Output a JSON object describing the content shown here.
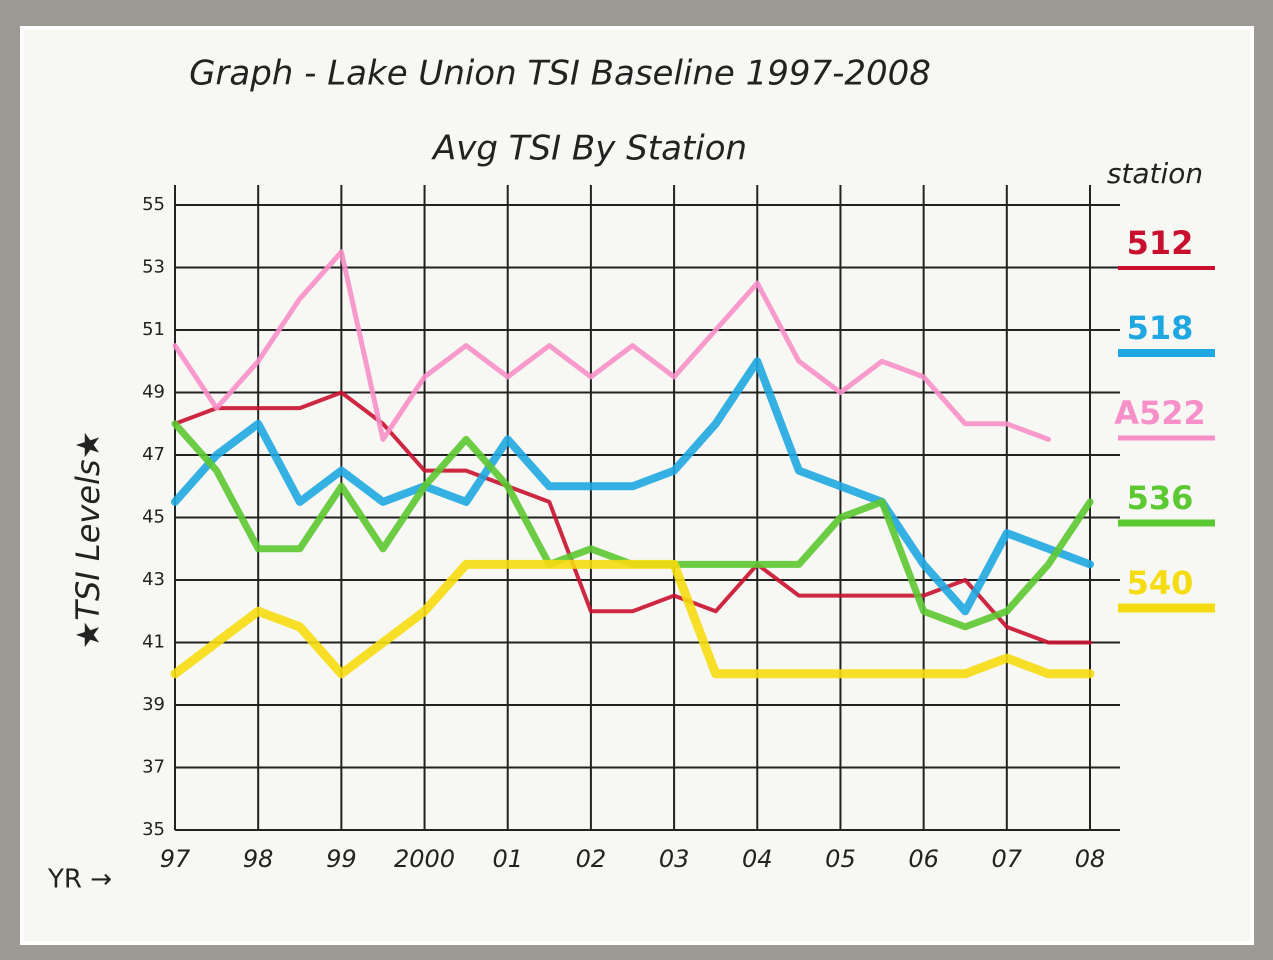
{
  "chart_data": {
    "type": "line",
    "title": "Graph - Lake Union TSI Baseline 1997-2008",
    "subtitle": "Avg TSI By Station",
    "y_label": "★TSI Levels★",
    "x_label": "YR →",
    "legend_title": "station",
    "legend": "right",
    "grid": true,
    "xlim": [
      1997,
      2008
    ],
    "xticks": [
      {
        "value": 1997,
        "label": "97"
      },
      {
        "value": 1998,
        "label": "98"
      },
      {
        "value": 1999,
        "label": "99"
      },
      2000,
      {
        "value": 2001,
        "label": "01"
      },
      {
        "value": 2002,
        "label": "02"
      },
      {
        "value": 2003,
        "label": "03"
      },
      {
        "value": 2004,
        "label": "04"
      },
      {
        "value": 2005,
        "label": "05"
      },
      {
        "value": 2006,
        "label": "06"
      },
      {
        "value": 2007,
        "label": "07"
      },
      {
        "value": 2008,
        "label": "08"
      }
    ],
    "ylim": [
      35,
      55
    ],
    "yticks": [
      35,
      37,
      39,
      41,
      43,
      45,
      47,
      49,
      51,
      53,
      55
    ],
    "x": [
      1997,
      1997.5,
      1998,
      1998.5,
      1999,
      1999.5,
      2000,
      2000.5,
      2001,
      2001.5,
      2002,
      2002.5,
      2003,
      2003.5,
      2004,
      2004.5,
      2005,
      2005.5,
      2006,
      2006.5,
      2007,
      2007.5,
      2008
    ],
    "series": [
      {
        "name": "512",
        "color": "#c8102e",
        "width": 4,
        "values": [
          48,
          48.5,
          48.5,
          48.5,
          49,
          48,
          46.5,
          46.5,
          46,
          45.5,
          42,
          42,
          42.5,
          42,
          43.5,
          42.5,
          42.5,
          42.5,
          42.5,
          43,
          41.5,
          41,
          41
        ]
      },
      {
        "name": "518",
        "color": "#1ea7e1",
        "width": 8,
        "values": [
          45.5,
          47,
          48,
          45.5,
          46.5,
          45.5,
          46,
          45.5,
          47.5,
          46,
          46,
          46,
          46.5,
          48,
          50,
          46.5,
          46,
          45.5,
          43.5,
          42,
          44.5,
          44,
          43.5
        ]
      },
      {
        "name": "A522",
        "color": "#f78fc8",
        "width": 5,
        "values": [
          50.5,
          48.5,
          50,
          52,
          53.5,
          47.5,
          49.5,
          50.5,
          49.5,
          50.5,
          49.5,
          50.5,
          49.5,
          51,
          52.5,
          50,
          49,
          50,
          49.5,
          48,
          48,
          47.5,
          null
        ]
      },
      {
        "name": "536",
        "color": "#5cc832",
        "width": 7,
        "values": [
          48,
          46.5,
          44,
          44,
          46,
          44,
          46,
          47.5,
          46,
          43.5,
          44,
          43.5,
          43.5,
          43.5,
          43.5,
          43.5,
          45,
          45.5,
          42,
          41.5,
          42,
          43.5,
          45.5
        ]
      },
      {
        "name": "540",
        "color": "#f5dc10",
        "width": 9,
        "values": [
          40,
          41,
          42,
          41.5,
          40,
          41,
          42,
          43.5,
          43.5,
          43.5,
          43.5,
          43.5,
          43.5,
          40,
          40,
          40,
          40,
          40,
          40,
          40,
          40.5,
          40,
          40
        ]
      }
    ]
  }
}
